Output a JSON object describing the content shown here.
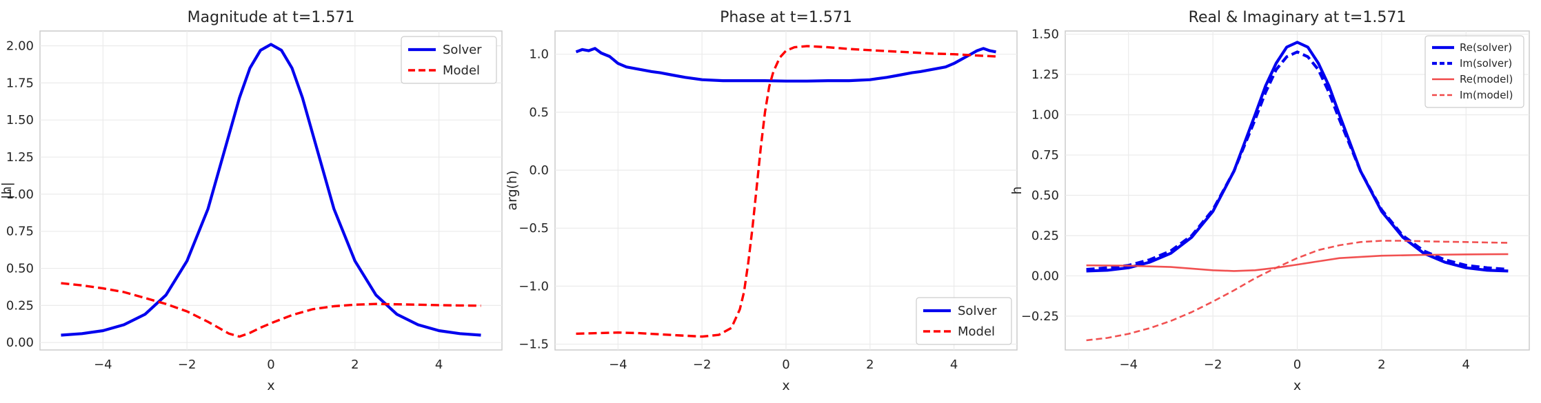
{
  "colors": {
    "solver": "#0000ee",
    "model": "#ff0000",
    "model_light": "#f04848"
  },
  "chart_data": [
    {
      "type": "line",
      "title": "Magnitude at t=1.571",
      "xlabel": "x",
      "ylabel": "|h|",
      "xlim": [
        -5.5,
        5.5
      ],
      "ylim": [
        -0.05,
        2.1
      ],
      "xticks": [
        -4,
        -2,
        0,
        2,
        4
      ],
      "xtick_labels": [
        "−4",
        "−2",
        "0",
        "2",
        "4"
      ],
      "yticks": [
        0,
        0.25,
        0.5,
        0.75,
        1.0,
        1.25,
        1.5,
        1.75,
        2.0
      ],
      "ytick_labels": [
        "0.00",
        "0.25",
        "0.50",
        "0.75",
        "1.00",
        "1.25",
        "1.50",
        "1.75",
        "2.00"
      ],
      "grid": true,
      "legend_position": "top-right",
      "series": [
        {
          "name": "Solver",
          "color": "#0000ee",
          "style": "solid",
          "width": "thick",
          "x": [
            -5,
            -4.5,
            -4,
            -3.5,
            -3,
            -2.5,
            -2,
            -1.5,
            -1,
            -0.75,
            -0.5,
            -0.25,
            0,
            0.25,
            0.5,
            0.75,
            1,
            1.5,
            2,
            2.5,
            3,
            3.5,
            4,
            4.5,
            5
          ],
          "y": [
            0.05,
            0.06,
            0.08,
            0.12,
            0.19,
            0.32,
            0.55,
            0.9,
            1.4,
            1.65,
            1.85,
            1.97,
            2.01,
            1.97,
            1.85,
            1.65,
            1.4,
            0.9,
            0.55,
            0.32,
            0.19,
            0.12,
            0.08,
            0.06,
            0.05
          ]
        },
        {
          "name": "Model",
          "color": "#ff0000",
          "style": "dashed",
          "width": "medium",
          "x": [
            -5,
            -4.5,
            -4,
            -3.5,
            -3,
            -2.5,
            -2,
            -1.5,
            -1.25,
            -1,
            -0.75,
            -0.5,
            -0.25,
            0,
            0.5,
            1,
            1.5,
            2,
            2.5,
            3,
            3.5,
            4,
            4.5,
            5
          ],
          "y": [
            0.4,
            0.385,
            0.365,
            0.34,
            0.3,
            0.26,
            0.21,
            0.14,
            0.1,
            0.06,
            0.04,
            0.065,
            0.1,
            0.13,
            0.185,
            0.225,
            0.245,
            0.255,
            0.26,
            0.258,
            0.255,
            0.252,
            0.25,
            0.248
          ]
        }
      ]
    },
    {
      "type": "line",
      "title": "Phase at t=1.571",
      "xlabel": "x",
      "ylabel": "arg(h)",
      "xlim": [
        -5.5,
        5.5
      ],
      "ylim": [
        -1.55,
        1.2
      ],
      "xticks": [
        -4,
        -2,
        0,
        2,
        4
      ],
      "xtick_labels": [
        "−4",
        "−2",
        "0",
        "2",
        "4"
      ],
      "yticks": [
        -1.5,
        -1.0,
        -0.5,
        0,
        0.5,
        1.0
      ],
      "ytick_labels": [
        "−1.5",
        "−1.0",
        "−0.5",
        "0.0",
        "0.5",
        "1.0"
      ],
      "grid": true,
      "legend_position": "bottom-right",
      "series": [
        {
          "name": "Solver",
          "color": "#0000ee",
          "style": "solid",
          "width": "thick",
          "x": [
            -5,
            -4.85,
            -4.7,
            -4.55,
            -4.4,
            -4.2,
            -4,
            -3.8,
            -3.5,
            -3.2,
            -3,
            -2.7,
            -2.4,
            -2,
            -1.5,
            -1,
            -0.5,
            0,
            0.5,
            1,
            1.5,
            2,
            2.4,
            2.7,
            3,
            3.2,
            3.5,
            3.8,
            4,
            4.2,
            4.4,
            4.55,
            4.7,
            4.85,
            5
          ],
          "y": [
            1.02,
            1.04,
            1.03,
            1.05,
            1.01,
            0.98,
            0.92,
            0.89,
            0.87,
            0.85,
            0.84,
            0.82,
            0.8,
            0.78,
            0.772,
            0.772,
            0.772,
            0.768,
            0.768,
            0.772,
            0.772,
            0.78,
            0.8,
            0.82,
            0.84,
            0.85,
            0.87,
            0.89,
            0.92,
            0.96,
            1.0,
            1.03,
            1.05,
            1.03,
            1.02
          ]
        },
        {
          "name": "Model",
          "color": "#ff0000",
          "style": "dashed",
          "width": "medium",
          "x": [
            -5,
            -4.5,
            -4,
            -3.5,
            -3,
            -2.5,
            -2,
            -1.6,
            -1.3,
            -1.1,
            -1,
            -0.9,
            -0.8,
            -0.7,
            -0.6,
            -0.5,
            -0.4,
            -0.3,
            -0.15,
            0,
            0.2,
            0.5,
            1,
            1.5,
            2,
            2.5,
            3,
            3.5,
            4,
            4.5,
            5
          ],
          "y": [
            -1.41,
            -1.405,
            -1.4,
            -1.405,
            -1.415,
            -1.425,
            -1.435,
            -1.42,
            -1.36,
            -1.2,
            -1.05,
            -0.8,
            -0.5,
            -0.15,
            0.2,
            0.5,
            0.72,
            0.85,
            0.97,
            1.03,
            1.06,
            1.07,
            1.06,
            1.045,
            1.035,
            1.025,
            1.015,
            1.005,
            1.0,
            0.99,
            0.98
          ]
        }
      ]
    },
    {
      "type": "line",
      "title": "Real & Imaginary at t=1.571",
      "xlabel": "x",
      "ylabel": "h",
      "xlim": [
        -5.5,
        5.5
      ],
      "ylim": [
        -0.46,
        1.52
      ],
      "xticks": [
        -4,
        -2,
        0,
        2,
        4
      ],
      "xtick_labels": [
        "−4",
        "−2",
        "0",
        "2",
        "4"
      ],
      "yticks": [
        -0.25,
        0,
        0.25,
        0.5,
        0.75,
        1.0,
        1.25,
        1.5
      ],
      "ytick_labels": [
        "−0.25",
        "0.00",
        "0.25",
        "0.50",
        "0.75",
        "1.00",
        "1.25",
        "1.50"
      ],
      "grid": true,
      "legend_position": "top-right",
      "series": [
        {
          "name": "Re(solver)",
          "color": "#0000ee",
          "style": "solid",
          "width": "thick",
          "x": [
            -5,
            -4.5,
            -4,
            -3.5,
            -3,
            -2.5,
            -2,
            -1.5,
            -1,
            -0.75,
            -0.5,
            -0.25,
            0,
            0.25,
            0.5,
            0.75,
            1,
            1.5,
            2,
            2.5,
            3,
            3.5,
            4,
            4.5,
            5
          ],
          "y": [
            0.03,
            0.035,
            0.05,
            0.085,
            0.14,
            0.24,
            0.4,
            0.65,
            1.0,
            1.18,
            1.32,
            1.42,
            1.45,
            1.42,
            1.32,
            1.18,
            1.0,
            0.65,
            0.4,
            0.24,
            0.14,
            0.085,
            0.05,
            0.035,
            0.03
          ]
        },
        {
          "name": "Im(solver)",
          "color": "#0000ee",
          "style": "dashed",
          "width": "thick",
          "x": [
            -5,
            -4.5,
            -4,
            -3.5,
            -3,
            -2.5,
            -2,
            -1.5,
            -1,
            -0.75,
            -0.5,
            -0.25,
            0,
            0.25,
            0.5,
            0.75,
            1,
            1.5,
            2,
            2.5,
            3,
            3.5,
            4,
            4.5,
            5
          ],
          "y": [
            0.04,
            0.05,
            0.065,
            0.1,
            0.155,
            0.25,
            0.41,
            0.65,
            0.97,
            1.14,
            1.28,
            1.36,
            1.39,
            1.36,
            1.28,
            1.14,
            0.97,
            0.65,
            0.41,
            0.25,
            0.155,
            0.1,
            0.065,
            0.05,
            0.04
          ]
        },
        {
          "name": "Re(model)",
          "color": "#f04848",
          "style": "solid",
          "width": "thin",
          "x": [
            -5,
            -4,
            -3,
            -2,
            -1.5,
            -1,
            -0.5,
            0,
            0.5,
            1,
            2,
            3,
            4,
            5
          ],
          "y": [
            0.065,
            0.063,
            0.055,
            0.035,
            0.03,
            0.035,
            0.05,
            0.07,
            0.09,
            0.11,
            0.125,
            0.13,
            0.133,
            0.135
          ]
        },
        {
          "name": "Im(model)",
          "color": "#f04848",
          "style": "dashed",
          "width": "thin",
          "x": [
            -5,
            -4.5,
            -4,
            -3.5,
            -3,
            -2.5,
            -2,
            -1.5,
            -1,
            -0.5,
            0,
            0.5,
            1,
            1.5,
            2,
            2.5,
            3,
            3.5,
            4,
            4.5,
            5
          ],
          "y": [
            -0.4,
            -0.385,
            -0.36,
            -0.325,
            -0.28,
            -0.225,
            -0.16,
            -0.09,
            -0.015,
            0.05,
            0.11,
            0.16,
            0.19,
            0.21,
            0.218,
            0.218,
            0.215,
            0.212,
            0.21,
            0.207,
            0.205
          ]
        }
      ]
    }
  ]
}
